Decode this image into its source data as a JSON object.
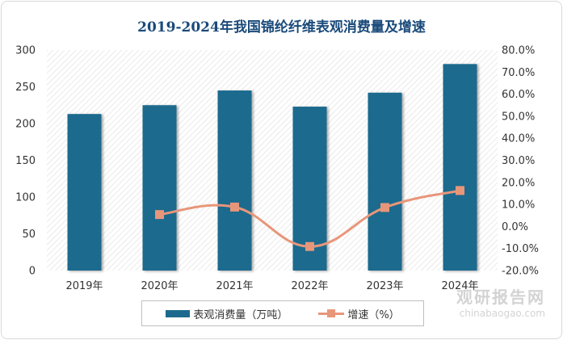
{
  "chart_data": {
    "type": "bar+line",
    "title": "2019-2024年我国锦纶纤维表观消费量及增速",
    "categories": [
      "2019年",
      "2020年",
      "2021年",
      "2022年",
      "2023年",
      "2024年"
    ],
    "series": [
      {
        "name": "表观消费量（万吨）",
        "type": "bar",
        "axis": "left",
        "color": "#1b6a8e",
        "values": [
          213,
          225,
          245,
          223,
          242,
          281
        ]
      },
      {
        "name": "增速（%）",
        "type": "line",
        "axis": "right",
        "color": "#e8967a",
        "values": [
          null,
          5.4,
          8.8,
          -9.1,
          8.6,
          16.3
        ]
      }
    ],
    "y_left": {
      "min": 0,
      "max": 300,
      "step": 50,
      "ticks": [
        "0",
        "50",
        "100",
        "150",
        "200",
        "250",
        "300"
      ]
    },
    "y_right": {
      "min": -20,
      "max": 80,
      "step": 10,
      "ticks": [
        "-20.0%",
        "-10.0%",
        "0.0%",
        "10.0%",
        "20.0%",
        "30.0%",
        "40.0%",
        "50.0%",
        "60.0%",
        "70.0%",
        "80.0%"
      ]
    },
    "legend_position": "bottom",
    "grid": false
  },
  "watermark": {
    "text_cn": "观研报告网",
    "text_en": "chinabaogao.com"
  }
}
